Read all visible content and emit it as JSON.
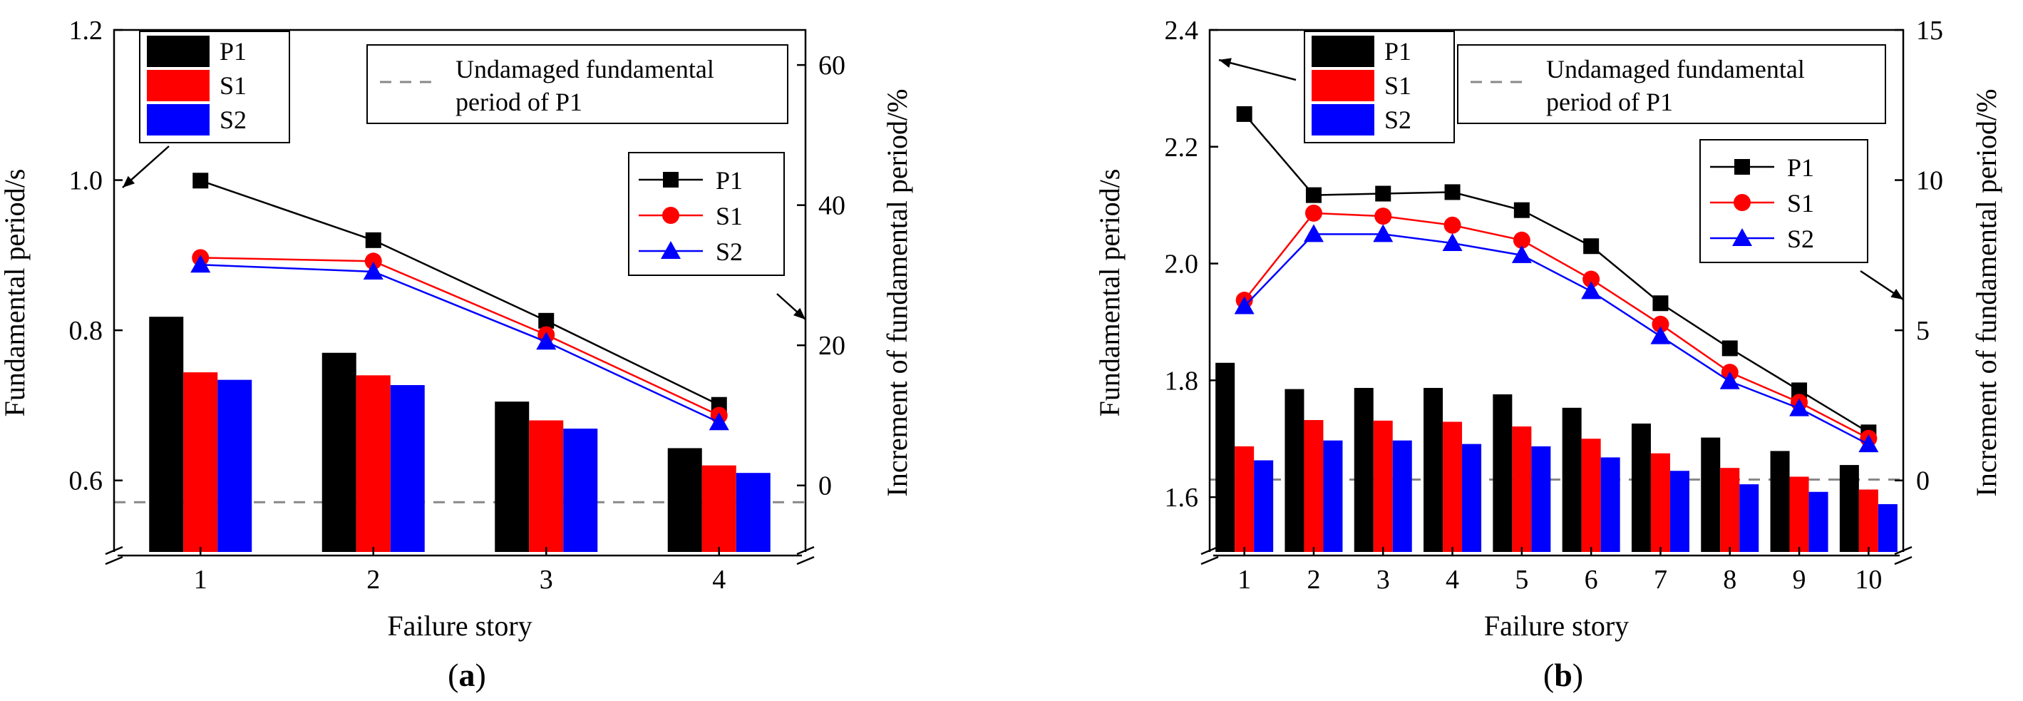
{
  "chart_data": [
    {
      "panel_id": "a",
      "type": "bar+line",
      "caption_letter": "a",
      "xlabel": "Failure story",
      "ylabel_left": "Fundamental period/s",
      "ylabel_right": "Increment of fundamental period/%",
      "categories": [
        "1",
        "2",
        "3",
        "4"
      ],
      "ylim_left": [
        0.5,
        1.2
      ],
      "yticks_left": [
        0.6,
        0.8,
        1.0,
        1.2
      ],
      "ylim_right": [
        -10,
        65
      ],
      "yticks_right": [
        0,
        20,
        40,
        60
      ],
      "y_axis_break": 0.5,
      "bar_series": [
        {
          "name": "P1",
          "color": "#000000",
          "values": [
            0.818,
            0.77,
            0.705,
            0.643
          ]
        },
        {
          "name": "S1",
          "color": "#ff0000",
          "values": [
            0.744,
            0.74,
            0.68,
            0.62
          ]
        },
        {
          "name": "S2",
          "color": "#0000ff",
          "values": [
            0.734,
            0.727,
            0.669,
            0.61
          ]
        }
      ],
      "line_series": [
        {
          "name": "P1",
          "color": "#000000",
          "marker": "square",
          "values": [
            43.5,
            35.0,
            23.5,
            11.5
          ]
        },
        {
          "name": "S1",
          "color": "#ff0000",
          "marker": "circle",
          "values": [
            32.5,
            32.0,
            21.5,
            10.0
          ]
        },
        {
          "name": "S2",
          "color": "#0000ff",
          "marker": "triangle",
          "values": [
            31.5,
            30.5,
            20.5,
            9.0
          ]
        }
      ],
      "reference_line": {
        "label_line1": "Undamaged fundamental",
        "label_line2": "period of P1",
        "value": 0.571
      }
    },
    {
      "panel_id": "b",
      "type": "bar+line",
      "caption_letter": "b",
      "xlabel": "Failure story",
      "ylabel_left": "Fundamental period/s",
      "ylabel_right": "Increment of fundamental period/%",
      "categories": [
        "1",
        "2",
        "3",
        "4",
        "5",
        "6",
        "7",
        "8",
        "9",
        "10"
      ],
      "ylim_left": [
        1.5,
        2.4
      ],
      "yticks_left": [
        1.6,
        1.8,
        2.0,
        2.2,
        2.4
      ],
      "ylim_right": [
        -2.5,
        15
      ],
      "yticks_right": [
        0,
        5,
        10,
        15
      ],
      "y_axis_break": 1.5,
      "bar_series": [
        {
          "name": "P1",
          "color": "#000000",
          "values": [
            1.83,
            1.785,
            1.787,
            1.787,
            1.776,
            1.753,
            1.726,
            1.702,
            1.679,
            1.655
          ]
        },
        {
          "name": "S1",
          "color": "#ff0000",
          "values": [
            1.687,
            1.732,
            1.731,
            1.729,
            1.721,
            1.7,
            1.675,
            1.65,
            1.635,
            1.613
          ]
        },
        {
          "name": "S2",
          "color": "#0000ff",
          "values": [
            1.663,
            1.697,
            1.697,
            1.691,
            1.687,
            1.668,
            1.645,
            1.622,
            1.609,
            1.588
          ]
        }
      ],
      "line_series": [
        {
          "name": "P1",
          "color": "#000000",
          "marker": "square",
          "values": [
            12.2,
            9.5,
            9.55,
            9.6,
            9.0,
            7.8,
            5.9,
            4.4,
            3.0,
            1.6
          ]
        },
        {
          "name": "S1",
          "color": "#ff0000",
          "marker": "circle",
          "values": [
            6.0,
            8.9,
            8.8,
            8.5,
            8.0,
            6.7,
            5.2,
            3.6,
            2.6,
            1.4
          ]
        },
        {
          "name": "S2",
          "color": "#0000ff",
          "marker": "triangle",
          "values": [
            5.8,
            8.2,
            8.2,
            7.9,
            7.5,
            6.3,
            4.8,
            3.3,
            2.4,
            1.2
          ]
        }
      ],
      "reference_line": {
        "label_line1": "Undamaged fundamental",
        "label_line2": "period of P1",
        "value": 1.63
      }
    }
  ]
}
